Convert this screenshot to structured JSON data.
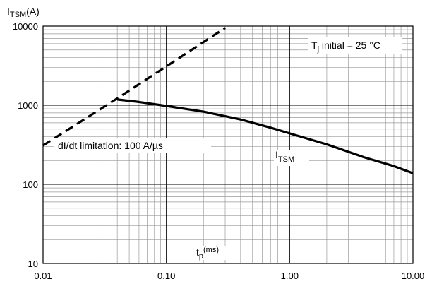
{
  "chart_data": {
    "type": "line",
    "title": "",
    "ylabel": {
      "main": "I",
      "sub": "TSM",
      "unit": "(A)"
    },
    "xlabel": {
      "main": "t",
      "sub": "p",
      "unit": "(ms)"
    },
    "x_scale": "log",
    "y_scale": "log",
    "xlim": [
      0.01,
      10
    ],
    "ylim": [
      10,
      10000
    ],
    "x_tick_labels": [
      "0.01",
      "0.10",
      "1.00",
      "10.00"
    ],
    "y_tick_labels": [
      "10",
      "100",
      "1000",
      "10000"
    ],
    "grid": true,
    "series": [
      {
        "name": "ITSM",
        "style": "solid",
        "x": [
          0.04,
          0.06,
          0.1,
          0.2,
          0.4,
          0.7,
          1.0,
          2.0,
          4.0,
          7.0,
          10.0
        ],
        "y": [
          1180,
          1100,
          980,
          830,
          660,
          520,
          440,
          320,
          220,
          170,
          138
        ]
      },
      {
        "name": "dI/dt limitation",
        "style": "dashed",
        "x": [
          0.01,
          0.04,
          0.1,
          0.3
        ],
        "y": [
          310,
          1220,
          3100,
          9500
        ]
      }
    ],
    "annotations": {
      "tj": {
        "prefix": "T",
        "sub": "j",
        "text": " initial = 25 °C"
      },
      "didt": "dI/dt limitation: 100 A/µs",
      "curve": {
        "main": "I",
        "sub": "TSM"
      }
    }
  }
}
